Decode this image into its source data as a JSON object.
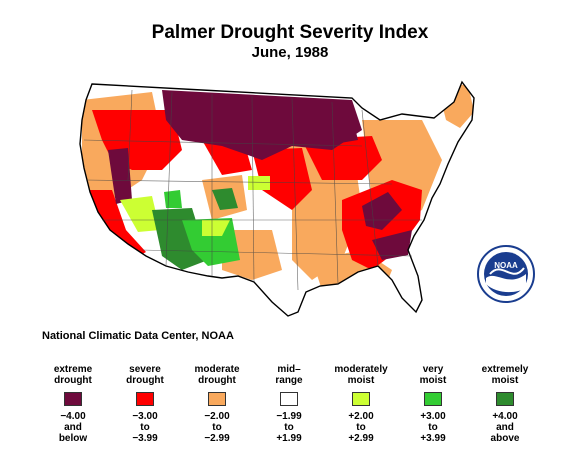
{
  "title": "Palmer Drought Severity Index",
  "subtitle": "June, 1988",
  "source": "National Climatic Data Center, NOAA",
  "logo_text": "NOAA",
  "colors": {
    "extreme_drought": "#6e0a3c",
    "severe_drought": "#ff0000",
    "moderate_drought": "#f9a95d",
    "mid_range": "#ffffff",
    "moderately_moist": "#ccff33",
    "very_moist": "#33cc33",
    "extremely_moist": "#2e8b2e"
  },
  "legend": [
    {
      "label_line1": "extreme",
      "label_line2": "drought",
      "range_line1": "−4.00",
      "range_line2": "and",
      "range_line3": "below",
      "color": "#6e0a3c"
    },
    {
      "label_line1": "severe",
      "label_line2": "drought",
      "range_line1": "−3.00",
      "range_line2": "to",
      "range_line3": "−3.99",
      "color": "#ff0000"
    },
    {
      "label_line1": "moderate",
      "label_line2": "drought",
      "range_line1": "−2.00",
      "range_line2": "to",
      "range_line3": "−2.99",
      "color": "#f9a95d"
    },
    {
      "label_line1": "mid–",
      "label_line2": "range",
      "range_line1": "−1.99",
      "range_line2": "to",
      "range_line3": "+1.99",
      "color": "#ffffff"
    },
    {
      "label_line1": "moderately",
      "label_line2": "moist",
      "range_line1": "+2.00",
      "range_line2": "to",
      "range_line3": "+2.99",
      "color": "#ccff33"
    },
    {
      "label_line1": "very",
      "label_line2": "moist",
      "range_line1": "+3.00",
      "range_line2": "to",
      "range_line3": "+3.99",
      "color": "#33cc33"
    },
    {
      "label_line1": "extremely",
      "label_line2": "moist",
      "range_line1": "+4.00",
      "range_line2": "and",
      "range_line3": "above",
      "color": "#2e8b2e"
    }
  ]
}
